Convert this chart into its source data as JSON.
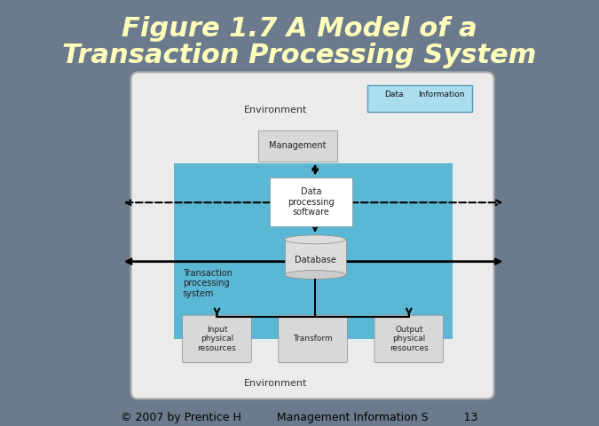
{
  "title_line1": "Figure 1.7 A Model of a",
  "title_line2": "Transaction Processing System",
  "title_color": "#FFFFBB",
  "bg_color": "#6B7B8D",
  "footer_text": "© 2007 by Prentice H          Management Information S          13",
  "footer_color": "#000000",
  "diagram_bg": "#F0F0F0",
  "diagram_border": "#AAAAAA",
  "blue_box_color": "#5BB8D4",
  "white_box_color": "#FFFFFF",
  "light_box_color": "#D8D8D8",
  "env_text_top": "Environment",
  "env_text_bottom": "Environment",
  "mgmt_text": "Management",
  "dps_text": "Data\nprocessing\nsoftware",
  "db_text": "Database",
  "tps_text": "Transaction\nprocessing\nsystem",
  "input_text": "Input\nphysical\nresources",
  "transform_text": "Transform",
  "output_text": "Output\nphysical\nresources",
  "legend_data": "Data",
  "legend_info": "Information"
}
